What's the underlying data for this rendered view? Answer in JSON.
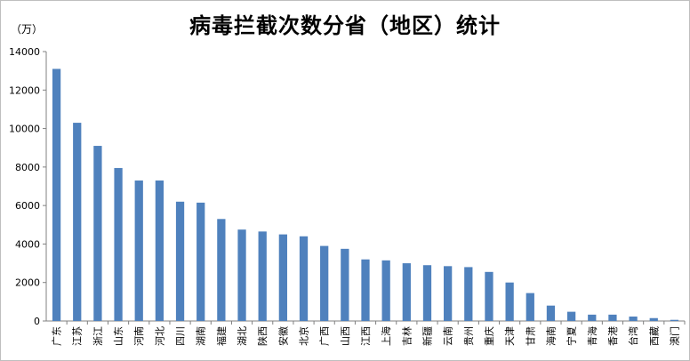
{
  "chart_data": {
    "type": "bar",
    "title": "病毒拦截次数分省（地区）统计",
    "ylabel": "（万）",
    "xlabel": "",
    "ylim": [
      0,
      14000
    ],
    "yticks": [
      0,
      2000,
      4000,
      6000,
      8000,
      10000,
      12000,
      14000
    ],
    "grid": false,
    "bar_color": "#4f81bd",
    "categories": [
      "广东",
      "江苏",
      "浙江",
      "山东",
      "河南",
      "河北",
      "四川",
      "湖南",
      "福建",
      "湖北",
      "陕西",
      "安徽",
      "北京",
      "广西",
      "山西",
      "江西",
      "上海",
      "吉林",
      "新疆",
      "云南",
      "贵州",
      "重庆",
      "天津",
      "甘肃",
      "海南",
      "宁夏",
      "青海",
      "香港",
      "台湾",
      "西藏",
      "澳门"
    ],
    "values": [
      13100,
      10300,
      9100,
      7950,
      7300,
      7300,
      6200,
      6150,
      5300,
      4750,
      4650,
      4500,
      4400,
      3900,
      3750,
      3200,
      3150,
      3000,
      2900,
      2850,
      2800,
      2550,
      2000,
      1450,
      800,
      480,
      330,
      330,
      230,
      150,
      60
    ]
  }
}
